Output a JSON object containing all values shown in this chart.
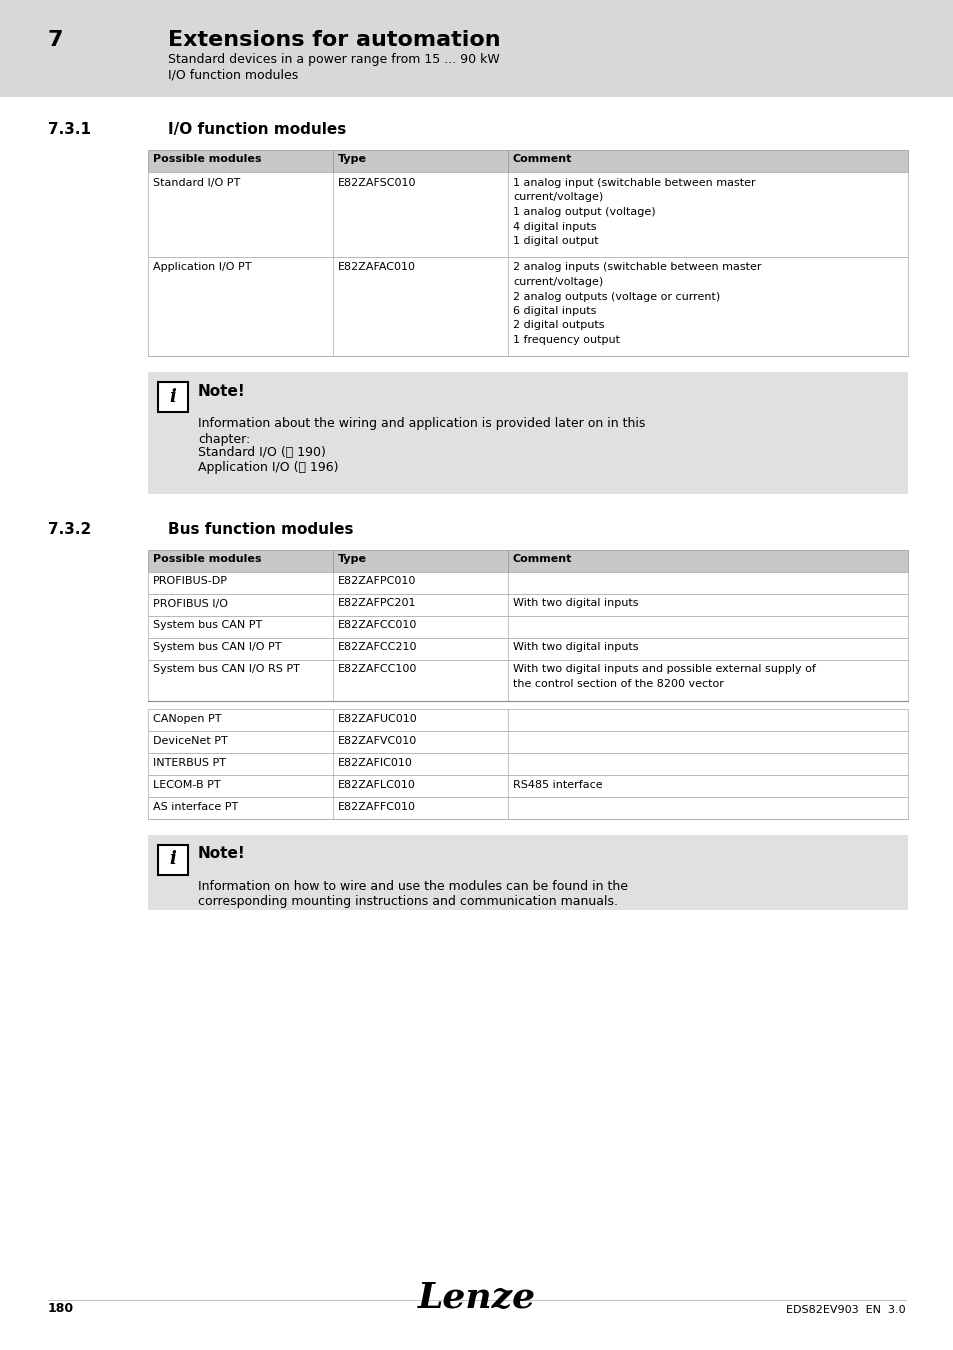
{
  "page_bg": "#ffffff",
  "header_bg": "#d8d8d8",
  "note_bg": "#e0e0e0",
  "table_header_bg": "#c8c8c8",
  "chapter_number": "7",
  "chapter_title": "Extensions for automation",
  "chapter_sub1": "Standard devices in a power range from 15 ... 90 kW",
  "chapter_sub2": "I/O function modules",
  "section1_num": "7.3.1",
  "section1_title": "I/O function modules",
  "io_table_headers": [
    "Possible modules",
    "Type",
    "Comment"
  ],
  "io_table_rows": [
    {
      "module": "Standard I/O PT",
      "type": "E82ZAFSC010",
      "comment_lines": [
        "1 analog input (switchable between master",
        "current/voltage)",
        "1 analog output (voltage)",
        "4 digital inputs",
        "1 digital output"
      ]
    },
    {
      "module": "Application I/O PT",
      "type": "E82ZAFAC010",
      "comment_lines": [
        "2 analog inputs (switchable between master",
        "current/voltage)",
        "2 analog outputs (voltage or current)",
        "6 digital inputs",
        "2 digital outputs",
        "1 frequency output"
      ]
    }
  ],
  "note1_title": "Note!",
  "note1_body_lines": [
    "Information about the wiring and application is provided later on in this",
    "chapter:"
  ],
  "note1_ref_lines": [
    "Standard I/O (⌹ 190)",
    "Application I/O (⌹ 196)"
  ],
  "section2_num": "7.3.2",
  "section2_title": "Bus function modules",
  "bus_table_headers": [
    "Possible modules",
    "Type",
    "Comment"
  ],
  "bus_table_rows": [
    {
      "module": "PROFIBUS-DP",
      "type": "E82ZAFPC010",
      "comment_lines": []
    },
    {
      "module": "PROFIBUS I/O",
      "type": "E82ZAFPC201",
      "comment_lines": [
        "With two digital inputs"
      ]
    },
    {
      "module": "System bus CAN PT",
      "type": "E82ZAFCC010",
      "comment_lines": []
    },
    {
      "module": "System bus CAN I/O PT",
      "type": "E82ZAFCC210",
      "comment_lines": [
        "With two digital inputs"
      ]
    },
    {
      "module": "System bus CAN I/O RS PT",
      "type": "E82ZAFCC100",
      "comment_lines": [
        "With two digital inputs and possible external supply of",
        "the control section of the 8200 vector"
      ]
    },
    {
      "module": "CANopen PT",
      "type": "E82ZAFUC010",
      "comment_lines": []
    },
    {
      "module": "DeviceNet PT",
      "type": "E82ZAFVC010",
      "comment_lines": []
    },
    {
      "module": "INTERBUS PT",
      "type": "E82ZAFIC010",
      "comment_lines": []
    },
    {
      "module": "LECOM-B PT",
      "type": "E82ZAFLC010",
      "comment_lines": [
        "RS485 interface"
      ]
    },
    {
      "module": "AS interface PT",
      "type": "E82ZAFFC010",
      "comment_lines": []
    }
  ],
  "bus_separator_after": 4,
  "note2_title": "Note!",
  "note2_body_lines": [
    "Information on how to wire and use the modules can be found in the",
    "corresponding mounting instructions and communication manuals."
  ],
  "footer_page": "180",
  "footer_logo": "Lenze",
  "footer_doc": "EDS82EV903  EN  3.0"
}
